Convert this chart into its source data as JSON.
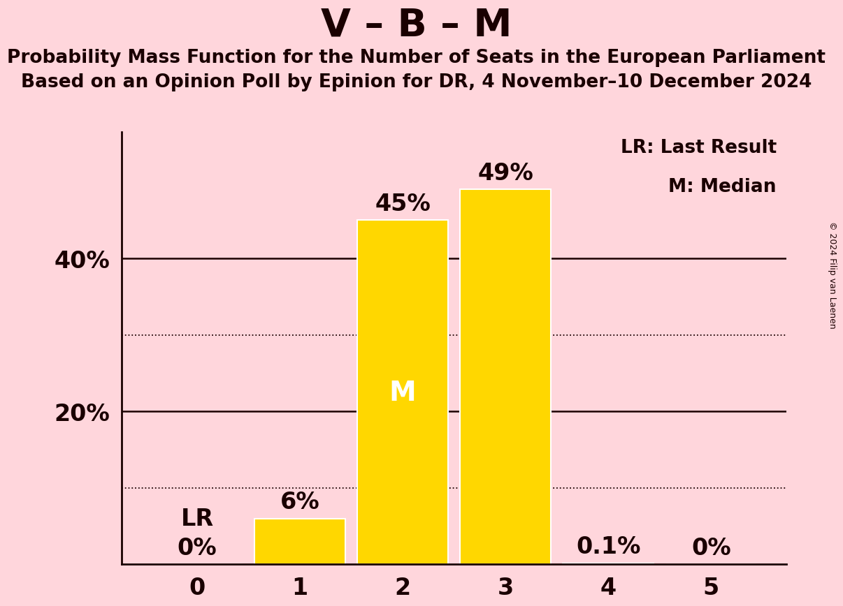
{
  "title": "V – B – M",
  "subtitle_line1": "Probability Mass Function for the Number of Seats in the European Parliament",
  "subtitle_line2": "Based on an Opinion Poll by Epinion for DR, 4 November–10 December 2024",
  "copyright": "© 2024 Filip van Laenen",
  "categories": [
    0,
    1,
    2,
    3,
    4,
    5
  ],
  "values": [
    0.0,
    0.06,
    0.45,
    0.49,
    0.001,
    0.0
  ],
  "bar_labels": [
    "0%",
    "6%",
    "45%",
    "49%",
    "0.1%",
    "0%"
  ],
  "bar_color": "#FFD700",
  "background_color": "#FFD6DC",
  "median_bar": 2,
  "lr_bar": 0,
  "legend_lr": "LR: Last Result",
  "legend_m": "M: Median",
  "yticks_solid": [
    0.2,
    0.4
  ],
  "yticks_dotted": [
    0.1,
    0.3
  ],
  "ylim": [
    0,
    0.565
  ],
  "bar_label_fontsize": 24,
  "title_fontsize": 40,
  "subtitle_fontsize": 19,
  "axis_tick_fontsize": 24,
  "legend_fontsize": 19,
  "copyright_fontsize": 9,
  "bar_width": 0.88
}
